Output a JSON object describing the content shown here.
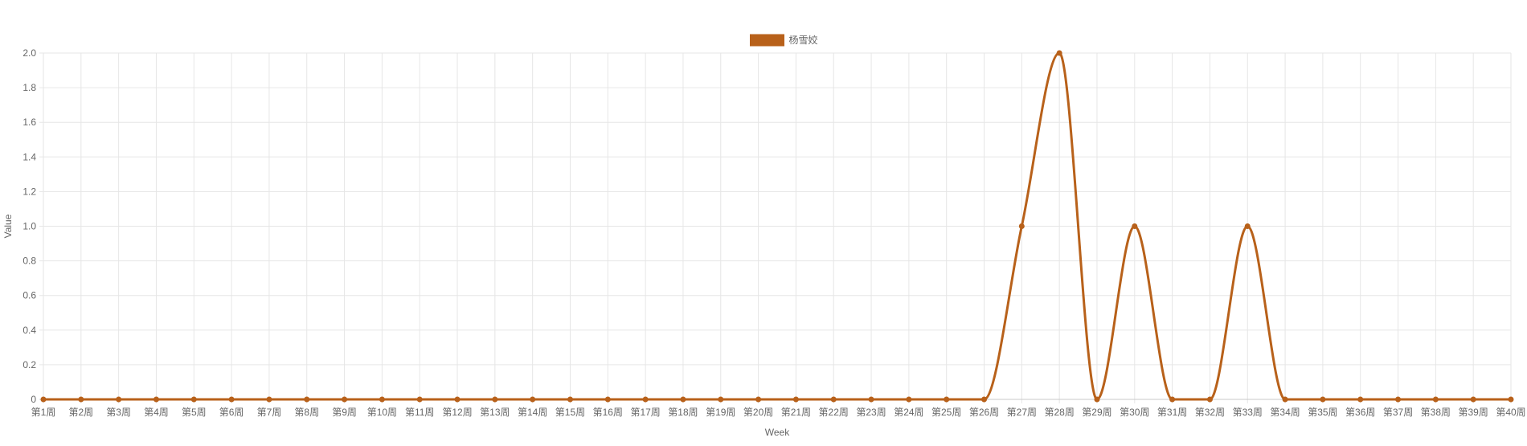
{
  "chart_data": {
    "type": "line",
    "xlabel": "Week",
    "ylabel": "Value",
    "categories": [
      "第1周",
      "第2周",
      "第3周",
      "第4周",
      "第5周",
      "第6周",
      "第7周",
      "第8周",
      "第9周",
      "第10周",
      "第11周",
      "第12周",
      "第13周",
      "第14周",
      "第15周",
      "第16周",
      "第17周",
      "第18周",
      "第19周",
      "第20周",
      "第21周",
      "第22周",
      "第23周",
      "第24周",
      "第25周",
      "第26周",
      "第27周",
      "第28周",
      "第29周",
      "第30周",
      "第31周",
      "第32周",
      "第33周",
      "第34周",
      "第35周",
      "第36周",
      "第37周",
      "第38周",
      "第39周",
      "第40周"
    ],
    "series": [
      {
        "name": "杨雪姣",
        "color": "#b8611a",
        "values": [
          0,
          0,
          0,
          0,
          0,
          0,
          0,
          0,
          0,
          0,
          0,
          0,
          0,
          0,
          0,
          0,
          0,
          0,
          0,
          0,
          0,
          0,
          0,
          0,
          0,
          0,
          1,
          2,
          0,
          1,
          0,
          0,
          1,
          0,
          0,
          0,
          0,
          0,
          0,
          0
        ]
      }
    ],
    "ylim": [
      0,
      2
    ],
    "yticks": [
      "0",
      "0.2",
      "0.4",
      "0.6",
      "0.8",
      "1.0",
      "1.2",
      "1.4",
      "1.6",
      "1.8",
      "2.0"
    ],
    "grid": true,
    "legend_position": "top-center"
  }
}
